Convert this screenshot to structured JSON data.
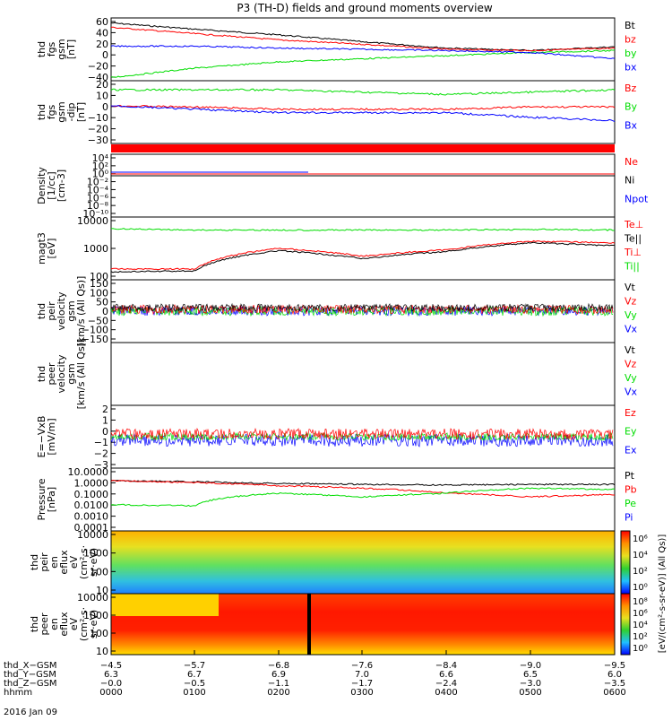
{
  "title": "P3 (TH-D) fields and ground moments overview",
  "date_label": "2016 Jan 09",
  "colors": {
    "black": "#000000",
    "red": "#ff0000",
    "green": "#00dd00",
    "blue": "#0000ff"
  },
  "panels": [
    {
      "id": "fgs_gsm",
      "ylabel": [
        "thd",
        "fgs",
        "gsm",
        "[nT]"
      ],
      "ticks": [
        "60",
        "40",
        "20",
        "0",
        "−20",
        "−40"
      ],
      "legend": [
        {
          "t": "Bt",
          "c": "#000000"
        },
        {
          "t": "bz",
          "c": "#ff0000"
        },
        {
          "t": "by",
          "c": "#00dd00"
        },
        {
          "t": "bx",
          "c": "#0000ff"
        }
      ]
    },
    {
      "id": "fgs_dsl",
      "ylabel": [
        "thd",
        "fgs",
        "gsm",
        "-dip",
        "[nT]"
      ],
      "ticks": [
        "20",
        "10",
        "0",
        "−10",
        "−20",
        "−30"
      ],
      "legend": [
        {
          "t": "Bz",
          "c": "#ff0000"
        },
        {
          "t": "By",
          "c": "#00dd00"
        },
        {
          "t": "Bx",
          "c": "#0000ff"
        }
      ]
    },
    {
      "id": "density",
      "ylabel": [
        "Density",
        "[1/cc]",
        "[cm-3]"
      ],
      "ticks": [
        "10⁴",
        "10²",
        "10⁰",
        "10⁻²",
        "10⁻⁴",
        "10⁻⁶",
        "10⁻⁸",
        "10⁻¹⁰"
      ],
      "legend": [
        {
          "t": "Ne",
          "c": "#ff0000"
        },
        {
          "t": "Ni",
          "c": "#000000"
        },
        {
          "t": "Npot",
          "c": "#0000ff"
        }
      ]
    },
    {
      "id": "temp",
      "ylabel": [
        "magt3",
        "[eV]"
      ],
      "ticks": [
        "10000",
        "1000",
        "100"
      ],
      "legend": [
        {
          "t": "Te⊥",
          "c": "#ff0000"
        },
        {
          "t": "Te||",
          "c": "#000000"
        },
        {
          "t": "Ti⊥",
          "c": "#ff0000"
        },
        {
          "t": "Ti||",
          "c": "#00dd00"
        }
      ]
    },
    {
      "id": "vi",
      "ylabel": [
        "thd",
        "peir",
        "velocity",
        "gsm",
        "[km/s (All Qs)]"
      ],
      "ticks": [
        "150",
        "100",
        "50",
        "0",
        "−50",
        "−100",
        "−150"
      ],
      "legend": [
        {
          "t": "Vt",
          "c": "#000000"
        },
        {
          "t": "Vz",
          "c": "#ff0000"
        },
        {
          "t": "Vy",
          "c": "#00dd00"
        },
        {
          "t": "Vx",
          "c": "#0000ff"
        }
      ]
    },
    {
      "id": "ve",
      "ylabel": [
        "thd",
        "peer",
        "velocity",
        "gsm",
        "[km/s (All Qs)]"
      ],
      "ticks": [],
      "legend": [
        {
          "t": "Vt",
          "c": "#000000"
        },
        {
          "t": "Vz",
          "c": "#ff0000"
        },
        {
          "t": "Vy",
          "c": "#00dd00"
        },
        {
          "t": "Vx",
          "c": "#0000ff"
        }
      ]
    },
    {
      "id": "efield",
      "ylabel": [
        "E=−VxB",
        "[mV/m]"
      ],
      "ticks": [
        "2",
        "1",
        "0",
        "−1",
        "−2",
        "−3"
      ],
      "legend": [
        {
          "t": "Ez",
          "c": "#ff0000"
        },
        {
          "t": "Ey",
          "c": "#00dd00"
        },
        {
          "t": "Ex",
          "c": "#0000ff"
        }
      ]
    },
    {
      "id": "pressure",
      "ylabel": [
        "Pressure",
        "[nPa]"
      ],
      "ticks": [
        "10.0000",
        "1.0000",
        "0.1000",
        "0.0100",
        "0.0010",
        "0.0001"
      ],
      "legend": [
        {
          "t": "Pt",
          "c": "#000000"
        },
        {
          "t": "Pb",
          "c": "#ff0000"
        },
        {
          "t": "Pe",
          "c": "#00dd00"
        },
        {
          "t": "Pi",
          "c": "#0000ff"
        }
      ]
    },
    {
      "id": "ion_spec",
      "ylabel": [
        "thd",
        "peir",
        "en",
        "eflux",
        "eV",
        "(cm²·s·",
        "sr·eV)"
      ],
      "ticks": [
        "10000",
        "1000",
        "100",
        "10"
      ],
      "legend": []
    },
    {
      "id": "elec_spec",
      "ylabel": [
        "thd",
        "peer",
        "en",
        "eflux",
        "eV",
        "(cm²·s·",
        "sr·eV)"
      ],
      "ticks": [
        "10000",
        "1000",
        "100",
        "10"
      ],
      "legend": []
    }
  ],
  "colorbar": {
    "label": "[eV/(cm²-s-sr-eV)] (All Qs)]",
    "ion_ticks": [
      "10⁶",
      "10⁴",
      "10²",
      "10⁰"
    ],
    "elec_ticks": [
      "10⁸",
      "10⁶",
      "10⁴",
      "10²",
      "10⁰"
    ]
  },
  "xaxis": {
    "rows": [
      {
        "label": "thd_X−GSM",
        "vals": [
          "−4.5",
          "−5.7",
          "−6.8",
          "−7.6",
          "−8.4",
          "−9.0",
          "−9.5"
        ]
      },
      {
        "label": "thd_Y−GSM",
        "vals": [
          "6.3",
          "6.7",
          "6.9",
          "7.0",
          "6.6",
          "6.5",
          "6.0"
        ]
      },
      {
        "label": "thd_Z−GSM",
        "vals": [
          "−0.0",
          "−0.5",
          "−1.1",
          "−1.7",
          "−2.4",
          "−3.0",
          "−3.5"
        ]
      },
      {
        "label": "hhmm",
        "vals": [
          "0000",
          "0100",
          "0200",
          "0300",
          "0400",
          "0500",
          "0600"
        ]
      }
    ]
  },
  "chart_data": {
    "type": "line",
    "x_times": [
      "0000",
      "0100",
      "0200",
      "0300",
      "0400",
      "0500",
      "0600"
    ],
    "series": [
      {
        "name": "Bt",
        "panel": "fgs_gsm",
        "values": [
          52,
          42,
          33,
          22,
          12,
          8,
          14
        ]
      },
      {
        "name": "bz",
        "panel": "fgs_gsm",
        "values": [
          45,
          35,
          25,
          18,
          10,
          8,
          12
        ]
      },
      {
        "name": "by",
        "panel": "fgs_gsm",
        "values": [
          -35,
          -20,
          -10,
          -5,
          0,
          5,
          8
        ]
      },
      {
        "name": "bx",
        "panel": "fgs_gsm",
        "values": [
          15,
          15,
          12,
          10,
          8,
          5,
          -5
        ]
      },
      {
        "name": "By",
        "panel": "fgs_dsl",
        "values": [
          12,
          12,
          12,
          10,
          8,
          10,
          12
        ]
      },
      {
        "name": "Bz",
        "panel": "fgs_dsl",
        "values": [
          -2,
          -3,
          -5,
          -5,
          -5,
          -3,
          -3
        ]
      },
      {
        "name": "Bx",
        "panel": "fgs_dsl",
        "values": [
          -2,
          -5,
          -8,
          -8,
          -8,
          -12,
          -15
        ]
      },
      {
        "name": "Te⊥",
        "panel": "temp",
        "values": [
          130,
          130,
          800,
          400,
          700,
          1500,
          1300
        ]
      },
      {
        "name": "Te||",
        "panel": "temp",
        "values": [
          100,
          110,
          650,
          320,
          600,
          1300,
          1000
        ]
      },
      {
        "name": "Ti||",
        "panel": "temp",
        "values": [
          4500,
          4000,
          4000,
          4000,
          4000,
          4200,
          4000
        ]
      },
      {
        "name": "Pt",
        "panel": "pressure",
        "values": [
          1.0,
          0.8,
          0.6,
          0.5,
          0.45,
          0.5,
          0.5
        ]
      },
      {
        "name": "Pb",
        "panel": "pressure",
        "values": [
          1.0,
          0.7,
          0.4,
          0.25,
          0.1,
          0.05,
          0.08
        ]
      },
      {
        "name": "Pe",
        "panel": "pressure",
        "values": [
          0.012,
          0.01,
          0.1,
          0.05,
          0.1,
          0.25,
          0.2
        ]
      }
    ]
  }
}
